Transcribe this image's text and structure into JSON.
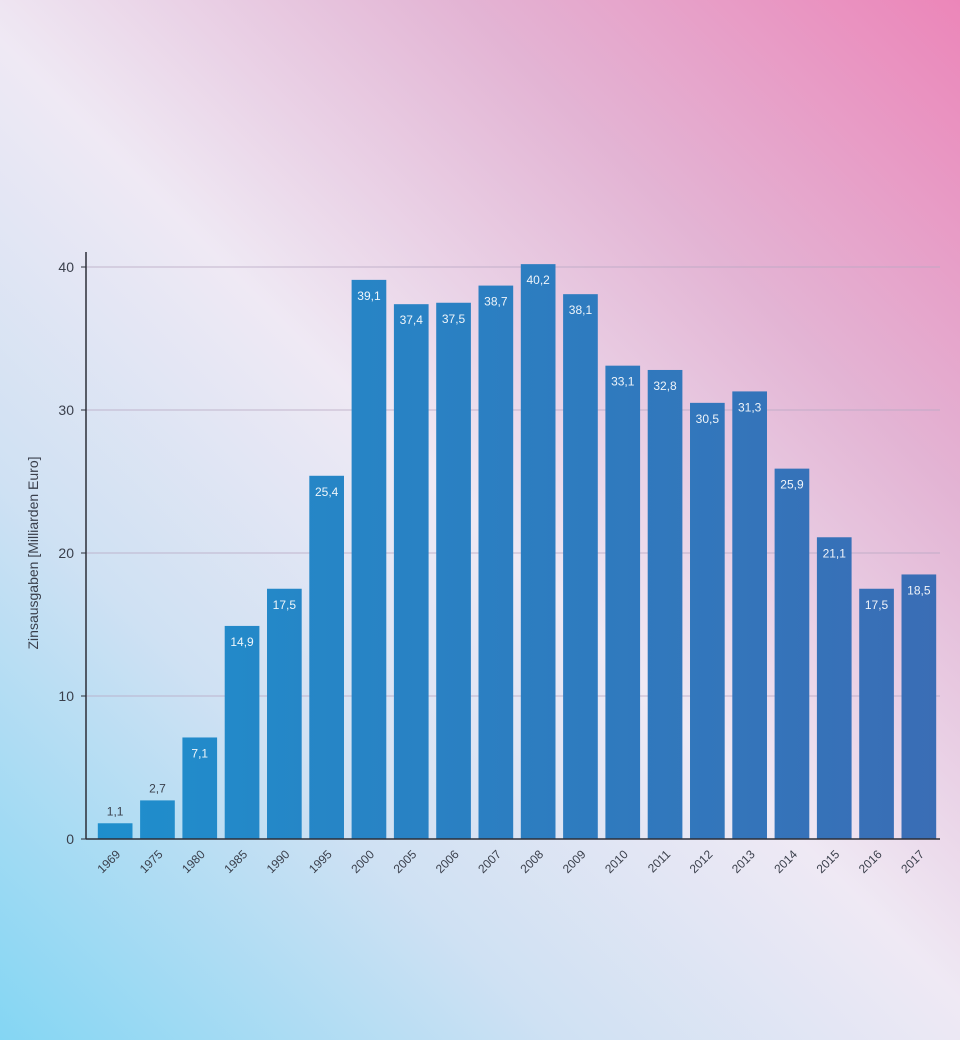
{
  "chart_data": {
    "type": "bar",
    "title": "",
    "xlabel": "",
    "ylabel": "Zinsausgaben [Milliarden Euro]",
    "ylim": [
      0,
      40
    ],
    "yticks": [
      0,
      10,
      20,
      30,
      40
    ],
    "grid": true,
    "categories": [
      "1969",
      "1975",
      "1980",
      "1985",
      "1990",
      "1995",
      "2000",
      "2005",
      "2006",
      "2007",
      "2008",
      "2009",
      "2010",
      "2011",
      "2012",
      "2013",
      "2014",
      "2015",
      "2016",
      "2017"
    ],
    "values": [
      1.1,
      2.7,
      7.1,
      14.9,
      17.5,
      25.4,
      39.1,
      37.4,
      37.5,
      38.7,
      40.2,
      38.1,
      33.1,
      32.8,
      30.5,
      31.3,
      25.9,
      21.1,
      17.5,
      18.5
    ],
    "data_labels": [
      "1,1",
      "2,7",
      "7,1",
      "14,9",
      "17,5",
      "25,4",
      "39,1",
      "37,4",
      "37,5",
      "38,7",
      "40,2",
      "38,1",
      "33,1",
      "32,8",
      "30,5",
      "31,3",
      "25,9",
      "21,1",
      "17,5",
      "18,5"
    ],
    "colors": {
      "bar_start": "#1e8fcd",
      "bar_end": "#3a6db5",
      "axis": "#2c2f38",
      "grid": "#b9a9c4"
    }
  }
}
